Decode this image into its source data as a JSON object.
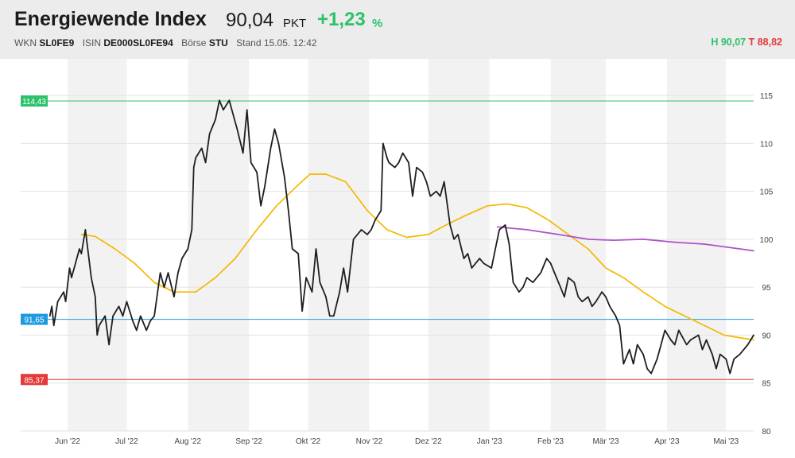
{
  "header": {
    "title": "Energiewende Index",
    "price": "90,04",
    "unit": "PKT",
    "change": "+1,23",
    "change_unit": "%",
    "wkn_label": "WKN",
    "wkn": "SL0FE9",
    "isin_label": "ISIN",
    "isin": "DE000SL0FE94",
    "exchange_label": "Börse",
    "exchange": "STU",
    "stand": "Stand 15.05. 12:42",
    "high": "H 90,07",
    "low": "T 88,82"
  },
  "colors": {
    "positive": "#2cc26a",
    "negative": "#e63a3a",
    "price_line": "#1e1e1e",
    "ma_short": "#f5b800",
    "ma_long": "#b04fc9",
    "level_high": "#2cc26a",
    "level_mid": "#1e9be0",
    "level_low": "#e63a3a"
  },
  "chart_data": {
    "type": "line",
    "ylim": [
      80,
      118
    ],
    "y_ticks": [
      80,
      85,
      90,
      95,
      100,
      105,
      110,
      115
    ],
    "month_labels": [
      "Jun '22",
      "Jul '22",
      "Aug '22",
      "Sep '22",
      "Okt '22",
      "Nov '22",
      "Dez '22",
      "Jan '23",
      "Feb '23",
      "Mär '23",
      "Apr '23",
      "Mai '23"
    ],
    "grid": true,
    "levels": [
      {
        "label": "114,43",
        "value": 114.43,
        "color": "#2cc26a"
      },
      {
        "label": "91,65",
        "value": 91.65,
        "color": "#1e9be0"
      },
      {
        "label": "85,37",
        "value": 85.37,
        "color": "#e63a3a"
      }
    ],
    "series": [
      {
        "color": "#1e1e1e",
        "points": [
          [
            "2022-05-23",
            92.0
          ],
          [
            "2022-05-24",
            93.0
          ],
          [
            "2022-05-25",
            91.0
          ],
          [
            "2022-05-27",
            93.5
          ],
          [
            "2022-05-30",
            94.5
          ],
          [
            "2022-05-31",
            93.5
          ],
          [
            "2022-06-02",
            97.0
          ],
          [
            "2022-06-03",
            96.0
          ],
          [
            "2022-06-07",
            99.0
          ],
          [
            "2022-06-08",
            98.5
          ],
          [
            "2022-06-10",
            101.0
          ],
          [
            "2022-06-13",
            96.0
          ],
          [
            "2022-06-15",
            94.0
          ],
          [
            "2022-06-16",
            90.0
          ],
          [
            "2022-06-17",
            91.0
          ],
          [
            "2022-06-20",
            92.0
          ],
          [
            "2022-06-22",
            89.0
          ],
          [
            "2022-06-24",
            92.0
          ],
          [
            "2022-06-27",
            93.0
          ],
          [
            "2022-06-29",
            92.0
          ],
          [
            "2022-07-01",
            93.5
          ],
          [
            "2022-07-04",
            91.5
          ],
          [
            "2022-07-06",
            90.5
          ],
          [
            "2022-07-08",
            92.0
          ],
          [
            "2022-07-11",
            90.5
          ],
          [
            "2022-07-13",
            91.5
          ],
          [
            "2022-07-15",
            92.0
          ],
          [
            "2022-07-18",
            96.5
          ],
          [
            "2022-07-20",
            95.0
          ],
          [
            "2022-07-22",
            96.5
          ],
          [
            "2022-07-25",
            94.0
          ],
          [
            "2022-07-27",
            96.5
          ],
          [
            "2022-07-29",
            98.0
          ],
          [
            "2022-08-01",
            99.0
          ],
          [
            "2022-08-03",
            101.0
          ],
          [
            "2022-08-04",
            107.5
          ],
          [
            "2022-08-05",
            108.5
          ],
          [
            "2022-08-08",
            109.5
          ],
          [
            "2022-08-10",
            108.0
          ],
          [
            "2022-08-12",
            111.0
          ],
          [
            "2022-08-15",
            112.5
          ],
          [
            "2022-08-17",
            114.5
          ],
          [
            "2022-08-19",
            113.5
          ],
          [
            "2022-08-22",
            114.5
          ],
          [
            "2022-08-24",
            113.0
          ],
          [
            "2022-08-26",
            111.5
          ],
          [
            "2022-08-29",
            109.0
          ],
          [
            "2022-08-31",
            113.5
          ],
          [
            "2022-09-02",
            108.0
          ],
          [
            "2022-09-05",
            107.0
          ],
          [
            "2022-09-07",
            103.5
          ],
          [
            "2022-09-09",
            105.5
          ],
          [
            "2022-09-12",
            109.5
          ],
          [
            "2022-09-14",
            111.5
          ],
          [
            "2022-09-16",
            110.0
          ],
          [
            "2022-09-19",
            106.5
          ],
          [
            "2022-09-21",
            103.0
          ],
          [
            "2022-09-23",
            99.0
          ],
          [
            "2022-09-26",
            98.5
          ],
          [
            "2022-09-28",
            92.5
          ],
          [
            "2022-09-30",
            96.0
          ],
          [
            "2022-10-03",
            94.5
          ],
          [
            "2022-10-05",
            99.0
          ],
          [
            "2022-10-07",
            95.5
          ],
          [
            "2022-10-10",
            94.0
          ],
          [
            "2022-10-12",
            92.0
          ],
          [
            "2022-10-14",
            92.0
          ],
          [
            "2022-10-17",
            94.5
          ],
          [
            "2022-10-19",
            97.0
          ],
          [
            "2022-10-21",
            94.5
          ],
          [
            "2022-10-24",
            100.0
          ],
          [
            "2022-10-26",
            100.5
          ],
          [
            "2022-10-28",
            101.0
          ],
          [
            "2022-10-31",
            100.5
          ],
          [
            "2022-11-02",
            101.0
          ],
          [
            "2022-11-04",
            102.0
          ],
          [
            "2022-11-07",
            103.0
          ],
          [
            "2022-11-08",
            110.0
          ],
          [
            "2022-11-10",
            108.5
          ],
          [
            "2022-11-11",
            108.0
          ],
          [
            "2022-11-14",
            107.5
          ],
          [
            "2022-11-16",
            108.0
          ],
          [
            "2022-11-18",
            109.0
          ],
          [
            "2022-11-21",
            108.0
          ],
          [
            "2022-11-23",
            104.5
          ],
          [
            "2022-11-25",
            107.5
          ],
          [
            "2022-11-28",
            107.0
          ],
          [
            "2022-11-30",
            106.0
          ],
          [
            "2022-12-02",
            104.5
          ],
          [
            "2022-12-05",
            105.0
          ],
          [
            "2022-12-07",
            104.5
          ],
          [
            "2022-12-09",
            106.0
          ],
          [
            "2022-12-12",
            101.5
          ],
          [
            "2022-12-14",
            100.0
          ],
          [
            "2022-12-16",
            100.5
          ],
          [
            "2022-12-19",
            98.0
          ],
          [
            "2022-12-21",
            98.5
          ],
          [
            "2022-12-23",
            97.0
          ],
          [
            "2022-12-27",
            98.0
          ],
          [
            "2022-12-29",
            97.5
          ],
          [
            "2023-01-02",
            97.0
          ],
          [
            "2023-01-04",
            99.0
          ],
          [
            "2023-01-06",
            101.0
          ],
          [
            "2023-01-09",
            101.5
          ],
          [
            "2023-01-11",
            99.5
          ],
          [
            "2023-01-13",
            95.5
          ],
          [
            "2023-01-16",
            94.5
          ],
          [
            "2023-01-18",
            95.0
          ],
          [
            "2023-01-20",
            96.0
          ],
          [
            "2023-01-23",
            95.5
          ],
          [
            "2023-01-25",
            96.0
          ],
          [
            "2023-01-27",
            96.5
          ],
          [
            "2023-01-30",
            98.0
          ],
          [
            "2023-02-01",
            97.5
          ],
          [
            "2023-02-03",
            96.5
          ],
          [
            "2023-02-06",
            95.0
          ],
          [
            "2023-02-08",
            94.0
          ],
          [
            "2023-02-10",
            96.0
          ],
          [
            "2023-02-13",
            95.5
          ],
          [
            "2023-02-15",
            94.0
          ],
          [
            "2023-02-17",
            93.5
          ],
          [
            "2023-02-20",
            94.0
          ],
          [
            "2023-02-22",
            93.0
          ],
          [
            "2023-02-24",
            93.5
          ],
          [
            "2023-02-27",
            94.5
          ],
          [
            "2023-03-01",
            94.0
          ],
          [
            "2023-03-03",
            93.0
          ],
          [
            "2023-03-06",
            92.0
          ],
          [
            "2023-03-08",
            91.0
          ],
          [
            "2023-03-10",
            87.0
          ],
          [
            "2023-03-13",
            88.5
          ],
          [
            "2023-03-15",
            87.0
          ],
          [
            "2023-03-17",
            89.0
          ],
          [
            "2023-03-20",
            88.0
          ],
          [
            "2023-03-22",
            86.5
          ],
          [
            "2023-03-24",
            86.0
          ],
          [
            "2023-03-27",
            87.5
          ],
          [
            "2023-03-29",
            89.0
          ],
          [
            "2023-03-31",
            90.5
          ],
          [
            "2023-04-03",
            89.5
          ],
          [
            "2023-04-05",
            89.0
          ],
          [
            "2023-04-07",
            90.5
          ],
          [
            "2023-04-11",
            89.0
          ],
          [
            "2023-04-13",
            89.5
          ],
          [
            "2023-04-17",
            90.0
          ],
          [
            "2023-04-19",
            88.5
          ],
          [
            "2023-04-21",
            89.5
          ],
          [
            "2023-04-24",
            88.0
          ],
          [
            "2023-04-26",
            86.5
          ],
          [
            "2023-04-28",
            88.0
          ],
          [
            "2023-05-01",
            87.5
          ],
          [
            "2023-05-03",
            86.0
          ],
          [
            "2023-05-05",
            87.5
          ],
          [
            "2023-05-08",
            88.0
          ],
          [
            "2023-05-10",
            88.5
          ],
          [
            "2023-05-12",
            89.0
          ],
          [
            "2023-05-15",
            90.0
          ]
        ]
      },
      {
        "color": "#f5b800",
        "points": [
          [
            "2022-06-08",
            100.5
          ],
          [
            "2022-06-15",
            100.3
          ],
          [
            "2022-06-25",
            99.0
          ],
          [
            "2022-07-05",
            97.5
          ],
          [
            "2022-07-15",
            95.5
          ],
          [
            "2022-07-25",
            94.5
          ],
          [
            "2022-08-05",
            94.5
          ],
          [
            "2022-08-15",
            96.0
          ],
          [
            "2022-08-25",
            98.0
          ],
          [
            "2022-09-05",
            101.0
          ],
          [
            "2022-09-15",
            103.5
          ],
          [
            "2022-09-25",
            105.5
          ],
          [
            "2022-10-02",
            106.8
          ],
          [
            "2022-10-10",
            106.8
          ],
          [
            "2022-10-20",
            106.0
          ],
          [
            "2022-10-31",
            103.0
          ],
          [
            "2022-11-10",
            101.0
          ],
          [
            "2022-11-20",
            100.2
          ],
          [
            "2022-12-01",
            100.5
          ],
          [
            "2022-12-10",
            101.5
          ],
          [
            "2022-12-20",
            102.5
          ],
          [
            "2022-12-31",
            103.5
          ],
          [
            "2023-01-10",
            103.7
          ],
          [
            "2023-01-20",
            103.3
          ],
          [
            "2023-01-31",
            102.0
          ],
          [
            "2023-02-10",
            100.5
          ],
          [
            "2023-02-20",
            99.0
          ],
          [
            "2023-03-01",
            97.0
          ],
          [
            "2023-03-10",
            96.0
          ],
          [
            "2023-03-20",
            94.5
          ],
          [
            "2023-03-31",
            93.0
          ],
          [
            "2023-04-10",
            92.0
          ],
          [
            "2023-04-20",
            91.0
          ],
          [
            "2023-04-30",
            90.0
          ],
          [
            "2023-05-15",
            89.5
          ]
        ]
      },
      {
        "color": "#b04fc9",
        "points": [
          [
            "2023-01-05",
            101.3
          ],
          [
            "2023-01-20",
            101.0
          ],
          [
            "2023-02-05",
            100.5
          ],
          [
            "2023-02-20",
            100.0
          ],
          [
            "2023-03-05",
            99.9
          ],
          [
            "2023-03-20",
            100.0
          ],
          [
            "2023-04-05",
            99.7
          ],
          [
            "2023-04-20",
            99.5
          ],
          [
            "2023-05-15",
            98.8
          ]
        ]
      }
    ]
  }
}
